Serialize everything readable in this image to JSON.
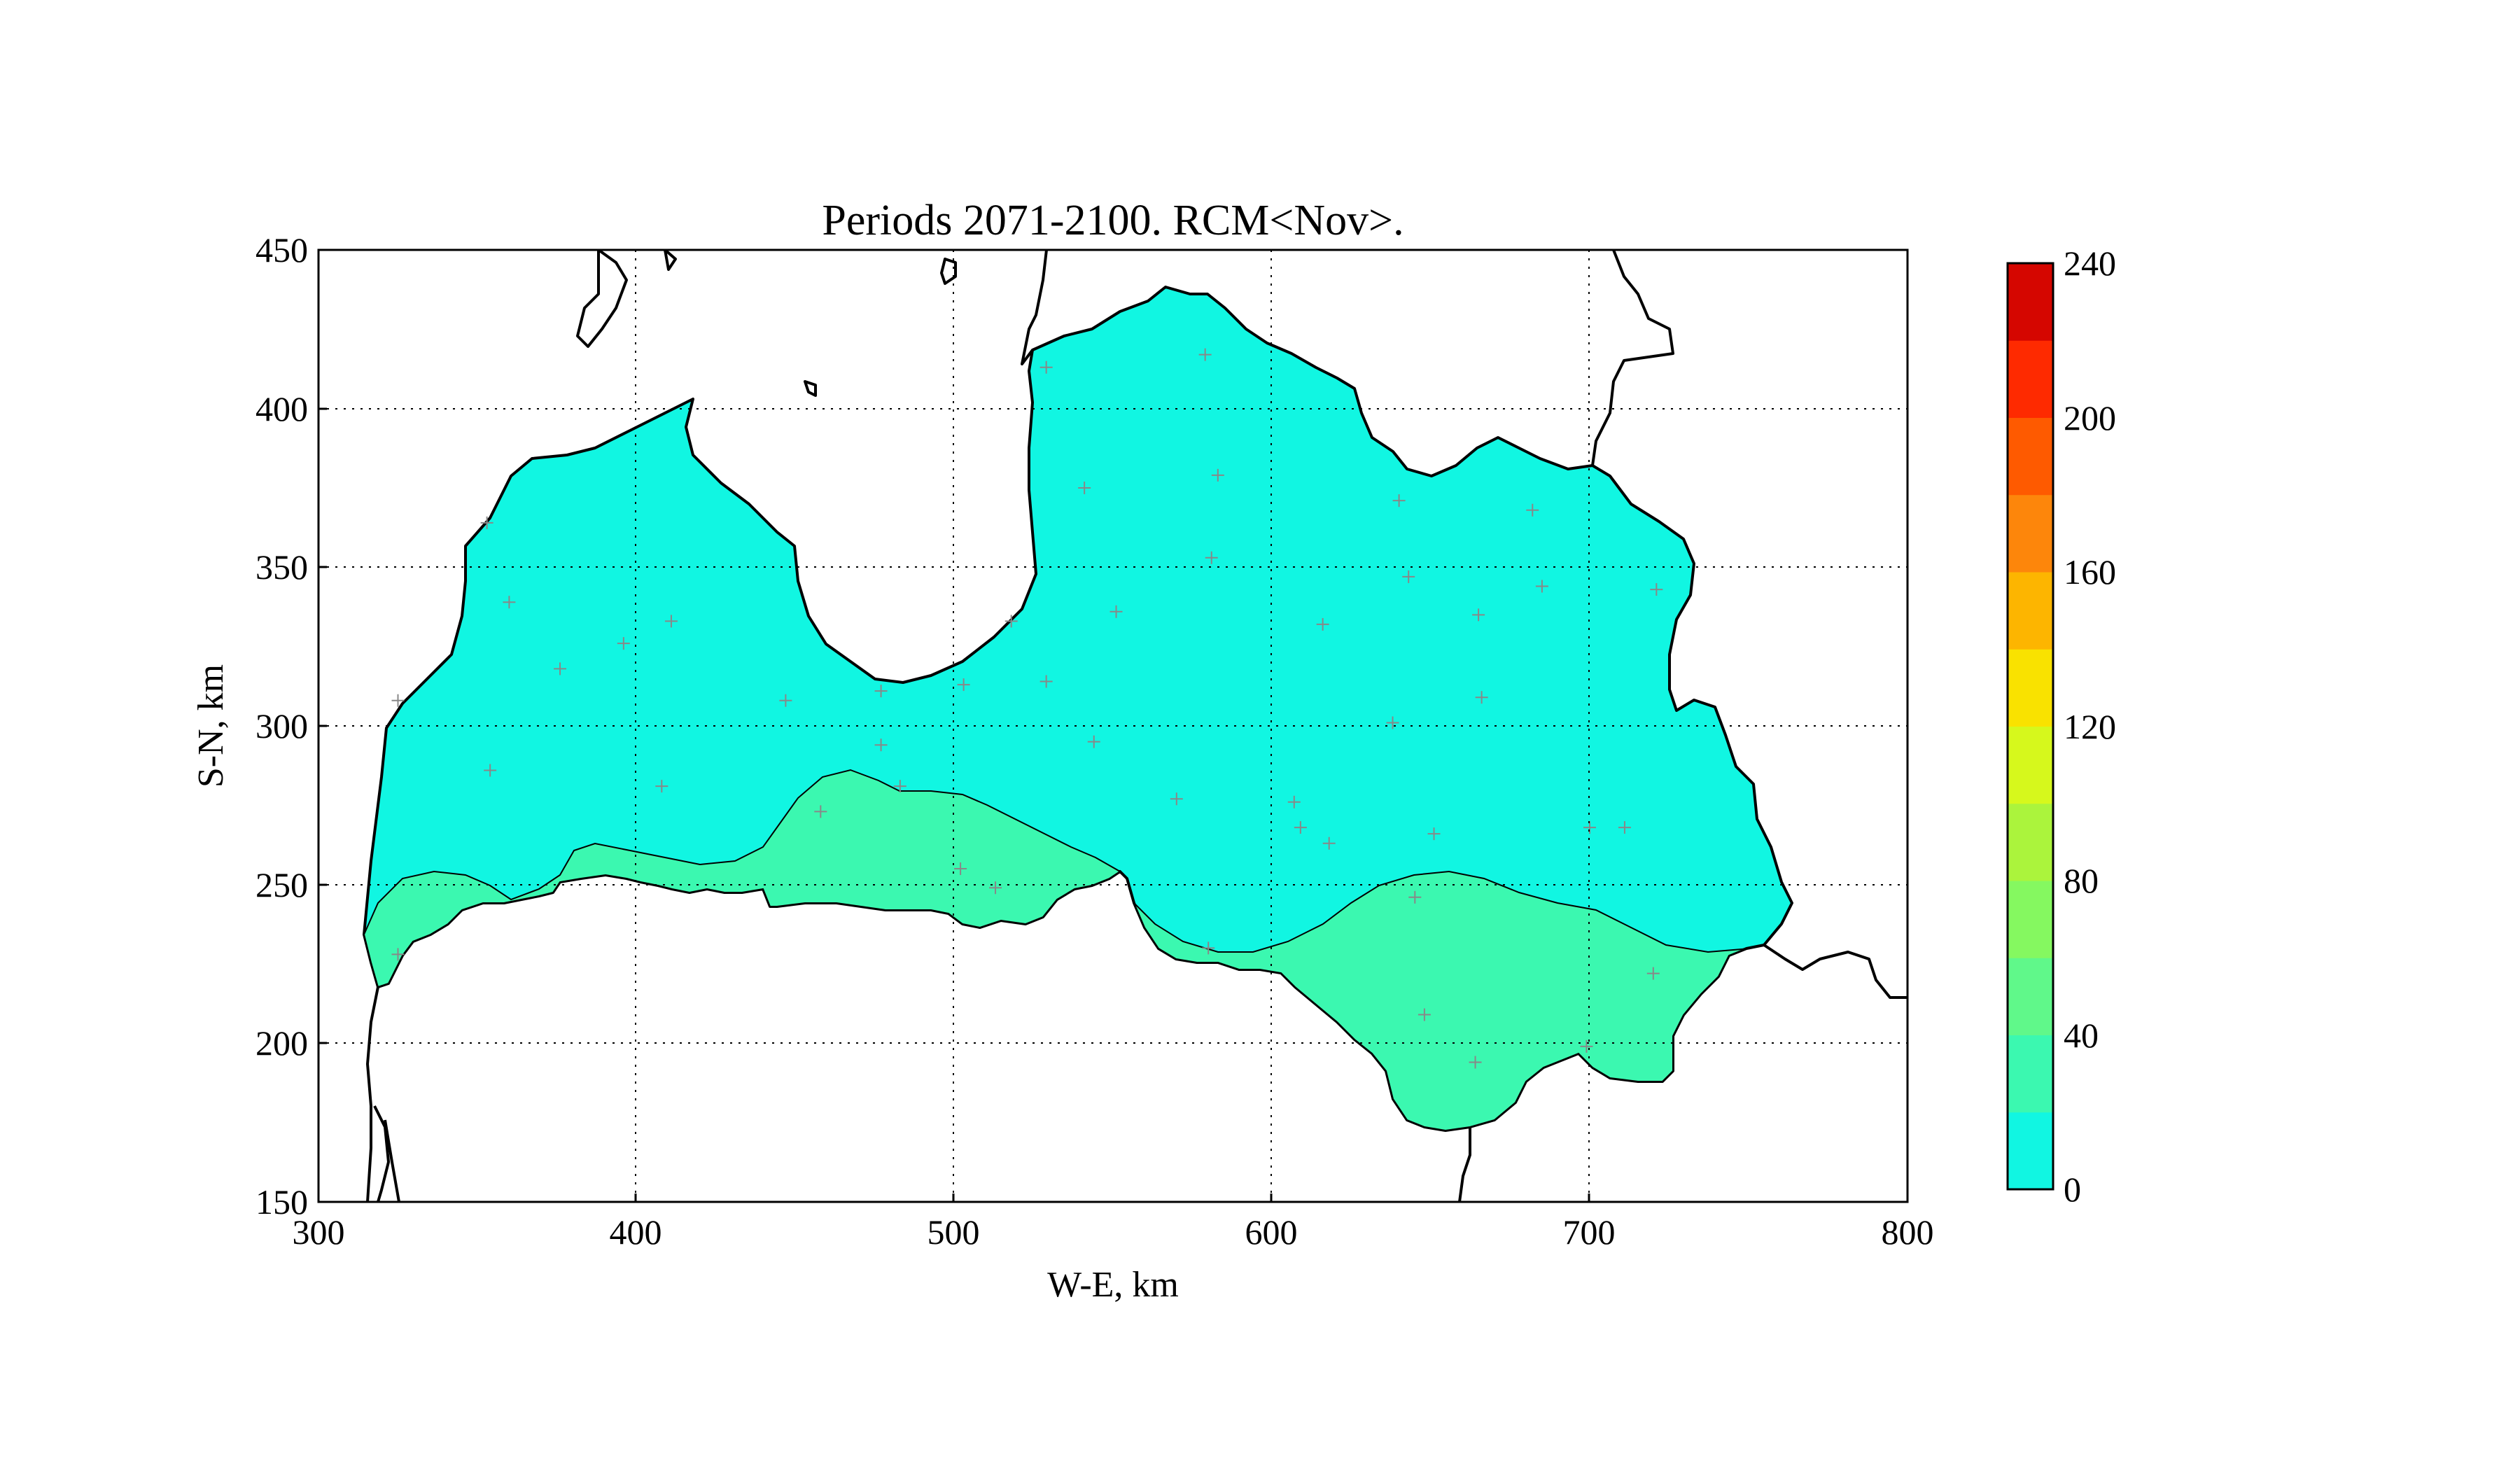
{
  "title": "Periods 2071-2100. RCM<Nov>.",
  "xlabel": "W-E, km",
  "ylabel": "S-N, km",
  "x_ticks": [
    "300",
    "400",
    "500",
    "600",
    "700",
    "800"
  ],
  "y_ticks": [
    "150",
    "200",
    "250",
    "300",
    "350",
    "400",
    "450"
  ],
  "colorbar": {
    "tick_labels": [
      "0",
      "40",
      "80",
      "120",
      "160",
      "200",
      "240"
    ],
    "levels": [
      0,
      20,
      40,
      60,
      80,
      100,
      120,
      140,
      160,
      180,
      200,
      220,
      240
    ],
    "colors": [
      "#11f6e2",
      "#3bf8b0",
      "#60f88a",
      "#85f860",
      "#abf43c",
      "#d6f81c",
      "#f9e200",
      "#fdb500",
      "#fd860b",
      "#fe5a00",
      "#fe2a00",
      "#d50600"
    ]
  },
  "chart_data": {
    "type": "contourf map",
    "xlim": [
      300,
      800
    ],
    "ylim": [
      150,
      450
    ],
    "grid": true,
    "bands_shown": [
      {
        "range": [
          0,
          20
        ],
        "color": "#11f6e2",
        "region": "north"
      },
      {
        "range": [
          20,
          40
        ],
        "color": "#3bf8b0",
        "region": "south"
      }
    ],
    "stations": [
      [
        353,
        364
      ],
      [
        360,
        339
      ],
      [
        376,
        318
      ],
      [
        396,
        326
      ],
      [
        411,
        333
      ],
      [
        354,
        286
      ],
      [
        408,
        281
      ],
      [
        447,
        308
      ],
      [
        477,
        311
      ],
      [
        477,
        294
      ],
      [
        483,
        281
      ],
      [
        458,
        273
      ],
      [
        502,
        255
      ],
      [
        513,
        249
      ],
      [
        503,
        313
      ],
      [
        518,
        333
      ],
      [
        529,
        413
      ],
      [
        529,
        314
      ],
      [
        541,
        375
      ],
      [
        544,
        295
      ],
      [
        551,
        336
      ],
      [
        570,
        277
      ],
      [
        579,
        417
      ],
      [
        581,
        353
      ],
      [
        583,
        379
      ],
      [
        607,
        276
      ],
      [
        609,
        268
      ],
      [
        616,
        332
      ],
      [
        618,
        263
      ],
      [
        638,
        301
      ],
      [
        640,
        371
      ],
      [
        643,
        347
      ],
      [
        645,
        246
      ],
      [
        648,
        209
      ],
      [
        651,
        266
      ],
      [
        664,
        194
      ],
      [
        665,
        335
      ],
      [
        666,
        309
      ],
      [
        682,
        368
      ],
      [
        685,
        344
      ],
      [
        699,
        199
      ],
      [
        700,
        268
      ],
      [
        711,
        268
      ],
      [
        720,
        222
      ],
      [
        721,
        343
      ],
      [
        325,
        228
      ],
      [
        325,
        308
      ],
      [
        580,
        230
      ]
    ]
  }
}
